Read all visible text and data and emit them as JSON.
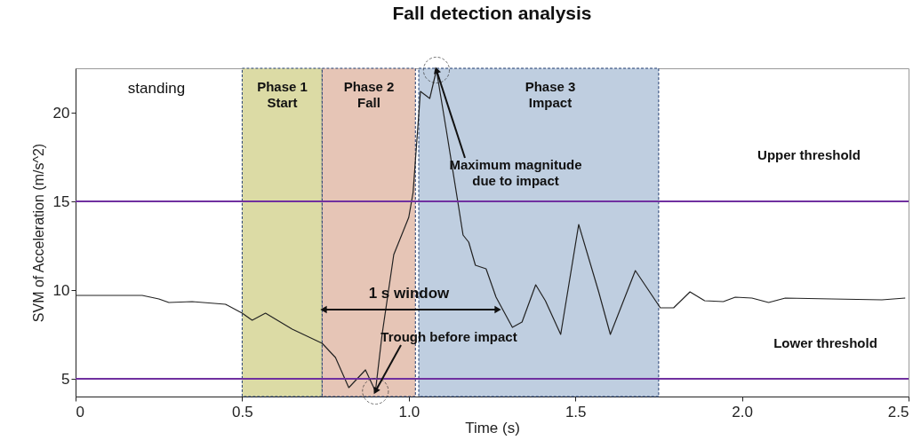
{
  "chart_data": {
    "type": "line",
    "title": "Fall detection analysis",
    "xlabel": "Time (s)",
    "ylabel": "SVM of Acceleration (m/s^2)",
    "x": [
      0,
      0.1,
      0.2,
      0.25,
      0.28,
      0.35,
      0.45,
      0.5,
      0.53,
      0.57,
      0.65,
      0.74,
      0.78,
      0.82,
      0.87,
      0.9,
      0.92,
      0.955,
      1.0,
      1.013,
      1.035,
      1.063,
      1.083,
      1.112,
      1.147,
      1.163,
      1.18,
      1.2,
      1.232,
      1.262,
      1.311,
      1.34,
      1.381,
      1.41,
      1.456,
      1.51,
      1.57,
      1.605,
      1.68,
      1.755,
      1.795,
      1.844,
      1.888,
      1.944,
      1.98,
      2.03,
      2.08,
      2.13,
      2.27,
      2.42,
      2.49
    ],
    "series": [
      {
        "color": "#222222",
        "values": [
          9.7,
          9.7,
          9.7,
          9.5,
          9.3,
          9.35,
          9.2,
          8.7,
          8.3,
          8.7,
          7.8,
          7.0,
          6.2,
          4.5,
          5.5,
          4.3,
          7.5,
          12.0,
          14.1,
          15.5,
          21.2,
          20.8,
          22.4,
          19.1,
          15.0,
          13.1,
          12.7,
          11.4,
          11.2,
          9.6,
          7.9,
          8.2,
          10.3,
          9.4,
          7.5,
          13.7,
          9.9,
          7.5,
          11.1,
          9.0,
          9.0,
          9.9,
          9.4,
          9.35,
          9.6,
          9.55,
          9.3,
          9.55,
          9.5,
          9.45,
          9.55
        ]
      }
    ],
    "xlim": [
      0,
      2.5
    ],
    "ylim": [
      4,
      22.5
    ],
    "xticks": [
      0,
      0.5,
      {
        "value": 1,
        "label": "1.0"
      },
      1.5,
      {
        "value": 2,
        "label": "2.0"
      },
      2.5
    ],
    "yticks": [
      5,
      10,
      15,
      20
    ],
    "grid": false,
    "marker": "none",
    "line_style": "solid",
    "ref_lines": [
      {
        "axis": "y",
        "value": 15,
        "label": "Upper threshold",
        "color": "#7030a0"
      },
      {
        "axis": "y",
        "value": 5,
        "label": "Lower threshold",
        "color": "#7030a0"
      }
    ],
    "bands": [
      {
        "axis": "x",
        "from": 0.5,
        "to": 0.74,
        "label": "Phase 1\nStart",
        "color": "#dcdba5"
      },
      {
        "axis": "x",
        "from": 0.74,
        "to": 1.02,
        "label": "Phase 2\nFall",
        "color": "#e6c5b6"
      },
      {
        "axis": "x",
        "from": 1.03,
        "to": 1.75,
        "label": "Phase 3\nImpact",
        "color": "#bfcee0"
      }
    ],
    "annotations": [
      "standing",
      {
        "text": "Maximum magnitude\ndue to impact",
        "x": 1.083,
        "y": 22.4
      },
      "1 s window",
      {
        "text": "Trough before impact",
        "x": 0.9,
        "y": 4.3
      }
    ]
  }
}
